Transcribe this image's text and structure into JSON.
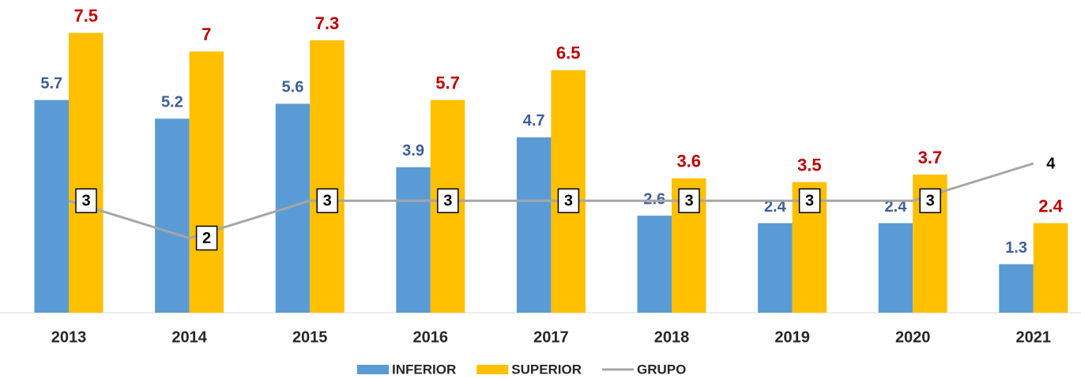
{
  "chart_data": {
    "type": "bar",
    "categories": [
      "2013",
      "2014",
      "2015",
      "2016",
      "2017",
      "2018",
      "2019",
      "2020",
      "2021"
    ],
    "series": [
      {
        "name": "INFERIOR",
        "type": "bar",
        "color": "#5b9bd5",
        "label_color": "#3d5f98",
        "values": [
          5.7,
          5.2,
          5.6,
          3.9,
          4.7,
          2.6,
          2.4,
          2.4,
          1.3
        ]
      },
      {
        "name": "SUPERIOR",
        "type": "bar",
        "color": "#ffc000",
        "label_color": "#c00000",
        "values": [
          7.5,
          7,
          7.3,
          5.7,
          6.5,
          3.6,
          3.5,
          3.7,
          2.4
        ]
      },
      {
        "name": "GRUPO",
        "type": "line",
        "color": "#a6a6a6",
        "label_color": "#000000",
        "values": [
          3,
          2,
          3,
          3,
          3,
          3,
          3,
          3,
          4
        ]
      }
    ],
    "ylim": [
      0,
      8
    ],
    "legend": "bottom"
  }
}
